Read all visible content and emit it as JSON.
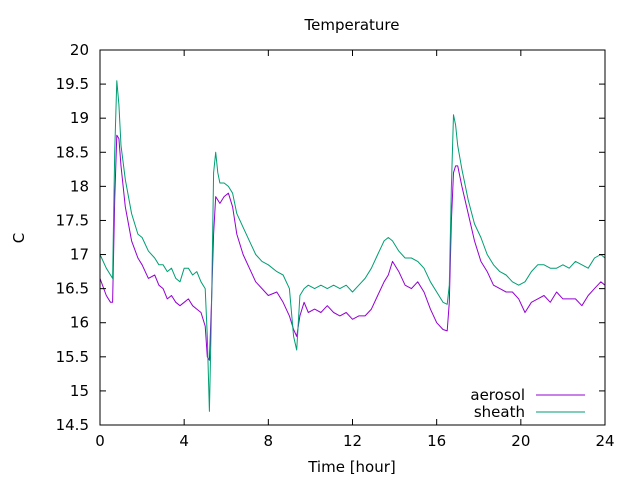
{
  "chart_data": {
    "type": "line",
    "title": "Temperature",
    "xlabel": "Time [hour]",
    "ylabel": "C",
    "xlim": [
      0,
      24
    ],
    "ylim": [
      14.5,
      20
    ],
    "xticks": [
      0,
      4,
      8,
      12,
      16,
      20,
      24
    ],
    "yticks": [
      14.5,
      15,
      15.5,
      16,
      16.5,
      17,
      17.5,
      18,
      18.5,
      19,
      19.5,
      20
    ],
    "xtick_labels": [
      "0",
      "4",
      "8",
      "12",
      "16",
      "20",
      "24"
    ],
    "ytick_labels": [
      "14.5",
      "15",
      "15.5",
      "16",
      "16.5",
      "17",
      "17.5",
      "18",
      "18.5",
      "19",
      "19.5",
      "20"
    ],
    "grid": false,
    "legend_position": "bottom-right",
    "series": [
      {
        "name": "aerosol",
        "color": "#9400d3",
        "x": [
          0,
          0.3,
          0.5,
          0.6,
          0.7,
          0.8,
          0.9,
          1.0,
          1.2,
          1.5,
          1.8,
          2.0,
          2.3,
          2.6,
          2.8,
          3.0,
          3.2,
          3.4,
          3.6,
          3.8,
          4.0,
          4.2,
          4.4,
          4.6,
          4.8,
          5.0,
          5.1,
          5.2,
          5.3,
          5.4,
          5.5,
          5.6,
          5.7,
          5.9,
          6.1,
          6.3,
          6.5,
          6.8,
          7.1,
          7.4,
          7.7,
          8.0,
          8.4,
          8.7,
          9.0,
          9.2,
          9.35,
          9.5,
          9.7,
          9.9,
          10.2,
          10.5,
          10.8,
          11.1,
          11.4,
          11.7,
          12.0,
          12.3,
          12.6,
          12.9,
          13.2,
          13.5,
          13.7,
          13.9,
          14.2,
          14.5,
          14.8,
          15.1,
          15.4,
          15.7,
          16.0,
          16.3,
          16.5,
          16.6,
          16.7,
          16.8,
          16.9,
          17.0,
          17.2,
          17.5,
          17.8,
          18.1,
          18.4,
          18.7,
          19.0,
          19.3,
          19.6,
          19.9,
          20.2,
          20.5,
          20.8,
          21.1,
          21.4,
          21.7,
          22.0,
          22.3,
          22.6,
          22.9,
          23.2,
          23.5,
          23.8,
          24.0
        ],
        "values": [
          16.65,
          16.4,
          16.3,
          16.3,
          17.8,
          18.75,
          18.7,
          18.3,
          17.7,
          17.2,
          16.95,
          16.85,
          16.65,
          16.7,
          16.55,
          16.5,
          16.35,
          16.4,
          16.3,
          16.25,
          16.3,
          16.35,
          16.25,
          16.2,
          16.15,
          15.95,
          15.5,
          15.45,
          16.3,
          17.3,
          17.85,
          17.8,
          17.75,
          17.85,
          17.9,
          17.7,
          17.3,
          17.0,
          16.8,
          16.6,
          16.5,
          16.4,
          16.45,
          16.3,
          16.1,
          15.9,
          15.8,
          16.1,
          16.3,
          16.15,
          16.2,
          16.15,
          16.25,
          16.15,
          16.1,
          16.15,
          16.05,
          16.1,
          16.1,
          16.2,
          16.4,
          16.6,
          16.7,
          16.9,
          16.75,
          16.55,
          16.5,
          16.6,
          16.45,
          16.2,
          16.0,
          15.9,
          15.88,
          16.3,
          17.5,
          18.2,
          18.3,
          18.3,
          18.0,
          17.6,
          17.2,
          16.9,
          16.75,
          16.55,
          16.5,
          16.45,
          16.45,
          16.35,
          16.15,
          16.3,
          16.35,
          16.4,
          16.3,
          16.45,
          16.35,
          16.35,
          16.35,
          16.25,
          16.4,
          16.5,
          16.6,
          16.55
        ]
      },
      {
        "name": "sheath",
        "color": "#009e73",
        "x": [
          0,
          0.3,
          0.5,
          0.6,
          0.7,
          0.8,
          0.9,
          1.0,
          1.2,
          1.5,
          1.8,
          2.0,
          2.3,
          2.6,
          2.8,
          3.0,
          3.2,
          3.4,
          3.6,
          3.8,
          4.0,
          4.2,
          4.4,
          4.6,
          4.8,
          5.0,
          5.1,
          5.2,
          5.3,
          5.4,
          5.5,
          5.6,
          5.7,
          5.9,
          6.1,
          6.3,
          6.5,
          6.8,
          7.1,
          7.4,
          7.7,
          8.0,
          8.4,
          8.7,
          9.0,
          9.2,
          9.35,
          9.5,
          9.7,
          9.9,
          10.2,
          10.5,
          10.8,
          11.1,
          11.4,
          11.7,
          12.0,
          12.3,
          12.6,
          12.9,
          13.2,
          13.5,
          13.7,
          13.9,
          14.2,
          14.5,
          14.8,
          15.1,
          15.4,
          15.7,
          16.0,
          16.3,
          16.5,
          16.6,
          16.7,
          16.8,
          16.9,
          17.0,
          17.2,
          17.5,
          17.8,
          18.1,
          18.4,
          18.7,
          19.0,
          19.3,
          19.6,
          19.9,
          20.2,
          20.5,
          20.8,
          21.1,
          21.4,
          21.7,
          22.0,
          22.3,
          22.6,
          22.9,
          23.2,
          23.5,
          23.8,
          24.0
        ],
        "values": [
          17.0,
          16.8,
          16.7,
          16.65,
          18.5,
          19.55,
          19.2,
          18.6,
          18.1,
          17.6,
          17.3,
          17.25,
          17.05,
          16.95,
          16.85,
          16.85,
          16.75,
          16.8,
          16.65,
          16.6,
          16.8,
          16.8,
          16.7,
          16.75,
          16.6,
          16.5,
          15.8,
          14.7,
          16.2,
          18.2,
          18.5,
          18.2,
          18.05,
          18.05,
          18.0,
          17.9,
          17.6,
          17.4,
          17.2,
          17.0,
          16.9,
          16.85,
          16.75,
          16.7,
          16.5,
          15.8,
          15.6,
          16.4,
          16.5,
          16.55,
          16.5,
          16.55,
          16.5,
          16.55,
          16.5,
          16.55,
          16.45,
          16.55,
          16.65,
          16.8,
          17.0,
          17.2,
          17.25,
          17.2,
          17.05,
          16.95,
          16.95,
          16.9,
          16.8,
          16.6,
          16.45,
          16.3,
          16.27,
          16.55,
          18.0,
          19.05,
          18.9,
          18.6,
          18.25,
          17.8,
          17.45,
          17.25,
          17.0,
          16.85,
          16.75,
          16.7,
          16.6,
          16.55,
          16.6,
          16.75,
          16.85,
          16.85,
          16.8,
          16.8,
          16.85,
          16.8,
          16.9,
          16.85,
          16.8,
          16.95,
          17.0,
          16.95
        ]
      }
    ]
  }
}
